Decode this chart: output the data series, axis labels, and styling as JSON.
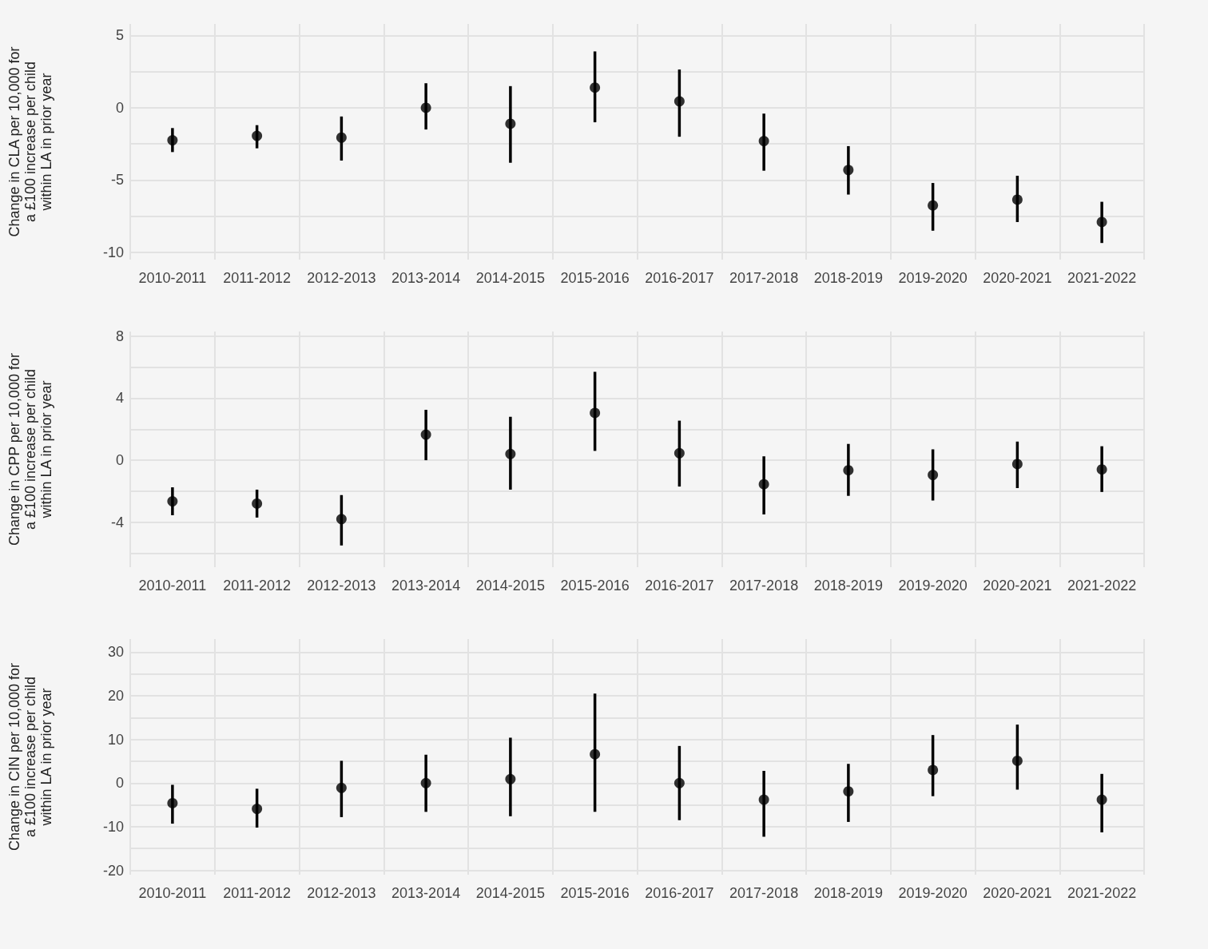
{
  "chart_data": [
    {
      "type": "scatter",
      "ylabel": "Change in CLA per 10,000 for a £100 increase per child within LA in prior year",
      "categories": [
        "2010-2011",
        "2011-2012",
        "2012-2013",
        "2013-2014",
        "2014-2015",
        "2015-2016",
        "2016-2017",
        "2017-2018",
        "2018-2019",
        "2019-2020",
        "2020-2021",
        "2021-2022"
      ],
      "series": [
        {
          "color": "#000000",
          "values": [
            -2.24,
            -1.94,
            -2.06,
            0,
            -1.1,
            1.4,
            0.45,
            -2.3,
            -4.3,
            -6.75,
            -6.35,
            -7.9
          ],
          "errors": [
            [
              -3.06,
              -1.4
            ],
            [
              -2.8,
              -1.2
            ],
            [
              -3.65,
              -0.6
            ],
            [
              -1.5,
              1.7
            ],
            [
              -3.8,
              1.5
            ],
            [
              -1.0,
              3.9
            ],
            [
              -2.0,
              2.65
            ],
            [
              -4.35,
              -0.4
            ],
            [
              -6.0,
              -2.65
            ],
            [
              -8.5,
              -5.2
            ],
            [
              -7.9,
              -4.7
            ],
            [
              -9.35,
              -6.5
            ]
          ]
        }
      ],
      "ylim": [
        -10.5,
        5.8
      ],
      "yticks": [
        -10,
        {
          "value": -7.5,
          "label": null
        },
        -5,
        {
          "value": -2.5,
          "label": null
        },
        0,
        {
          "value": 2.5,
          "label": null
        },
        5
      ],
      "grid": true,
      "marker": "circle"
    },
    {
      "type": "scatter",
      "ylabel": "Change in CPP per 10,000 for a £100 increase per child within LA in prior year",
      "categories": [
        "2010-2011",
        "2011-2012",
        "2012-2013",
        "2013-2014",
        "2014-2015",
        "2015-2016",
        "2016-2017",
        "2017-2018",
        "2018-2019",
        "2019-2020",
        "2020-2021",
        "2021-2022"
      ],
      "series": [
        {
          "color": "#000000",
          "values": [
            -2.65,
            -2.8,
            -3.8,
            1.65,
            0.4,
            3.05,
            0.45,
            -1.55,
            -0.65,
            -0.95,
            -0.25,
            -0.6
          ],
          "errors": [
            [
              -3.55,
              -1.75
            ],
            [
              -3.7,
              -1.9
            ],
            [
              -5.5,
              -2.25
            ],
            [
              0,
              3.25
            ],
            [
              -1.9,
              2.8
            ],
            [
              0.6,
              5.7
            ],
            [
              -1.7,
              2.55
            ],
            [
              -3.5,
              0.25
            ],
            [
              -2.3,
              1.05
            ],
            [
              -2.6,
              0.7
            ],
            [
              -1.8,
              1.2
            ],
            [
              -2.05,
              0.9
            ]
          ]
        }
      ],
      "ylim": [
        -6.9,
        8.3
      ],
      "yticks": [
        {
          "value": -6,
          "label": null
        },
        -4,
        {
          "value": -2,
          "label": null
        },
        0,
        {
          "value": 2,
          "label": null
        },
        4,
        {
          "value": 6,
          "label": null
        },
        8
      ],
      "grid": true,
      "marker": "circle"
    },
    {
      "type": "scatter",
      "ylabel": "Change in CIN per 10,000 for a £100 increase per child within LA in prior year",
      "categories": [
        "2010-2011",
        "2011-2012",
        "2012-2013",
        "2013-2014",
        "2014-2015",
        "2015-2016",
        "2016-2017",
        "2017-2018",
        "2018-2019",
        "2019-2020",
        "2020-2021",
        "2021-2022"
      ],
      "series": [
        {
          "color": "#000000",
          "values": [
            -4.6,
            -5.9,
            -1.1,
            0,
            0.9,
            6.6,
            0,
            -3.8,
            -1.9,
            3.0,
            5.1,
            -3.8
          ],
          "errors": [
            [
              -9.3,
              -0.4
            ],
            [
              -10.2,
              -1.3
            ],
            [
              -7.8,
              5.1
            ],
            [
              -6.6,
              6.5
            ],
            [
              -7.6,
              10.4
            ],
            [
              -6.6,
              20.5
            ],
            [
              -8.5,
              8.5
            ],
            [
              -12.3,
              2.8
            ],
            [
              -8.9,
              4.4
            ],
            [
              -3.0,
              11
            ],
            [
              -1.5,
              13.4
            ],
            [
              -11.3,
              2.1
            ]
          ]
        }
      ],
      "ylim": [
        -21,
        33
      ],
      "yticks": [
        -20,
        {
          "value": -15,
          "label": null
        },
        -10,
        {
          "value": -5,
          "label": null
        },
        0,
        {
          "value": 5,
          "label": null
        },
        10,
        {
          "value": 15,
          "label": null
        },
        20,
        {
          "value": 25,
          "label": null
        },
        30
      ],
      "grid": true,
      "marker": "circle"
    }
  ]
}
